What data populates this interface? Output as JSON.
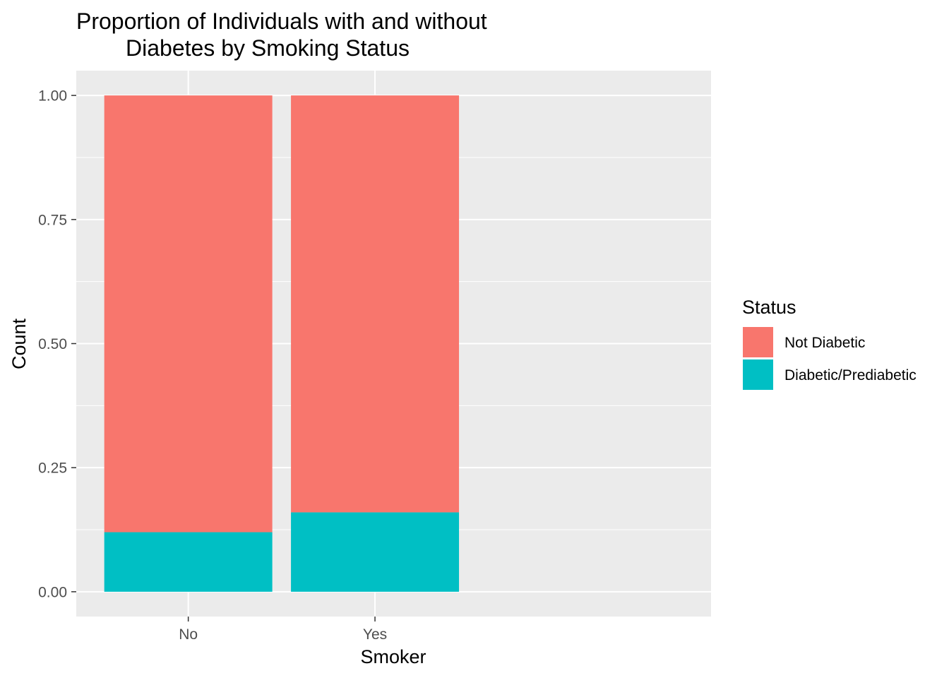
{
  "chart_data": {
    "type": "bar",
    "stacked": true,
    "title_lines": [
      "Proportion of Individuals with and without",
      "Diabetes by Smoking Status"
    ],
    "xlabel": "Smoker",
    "ylabel": "Count",
    "categories": [
      "No",
      "Yes"
    ],
    "series": [
      {
        "name": "Diabetic/Prediabetic",
        "values": [
          0.12,
          0.16
        ],
        "color": "#00BFC4"
      },
      {
        "name": "Not Diabetic",
        "values": [
          0.88,
          0.84
        ],
        "color": "#F8766D"
      }
    ],
    "ylim": [
      -0.05,
      1.05
    ],
    "yticks": [
      0,
      0.25,
      0.5,
      0.75,
      1
    ],
    "ytick_labels": [
      "0.00",
      "0.25",
      "0.50",
      "0.75",
      "1.00"
    ],
    "legend": {
      "title": "Status",
      "position": "right",
      "entries": [
        {
          "label": "Not Diabetic",
          "color": "#F8766D"
        },
        {
          "label": "Diabetic/Prediabetic",
          "color": "#00BFC4"
        }
      ]
    },
    "panel_background": "#EBEBEB",
    "grid": true
  }
}
